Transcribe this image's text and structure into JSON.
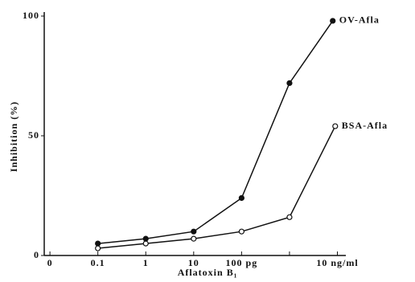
{
  "chart_data": {
    "type": "line",
    "xlabel": "Aflatoxin B₁",
    "ylabel": "Inhibition (%)",
    "xscale": "log",
    "xlim": [
      0.0076,
      15000
    ],
    "xticks": [
      {
        "value": 0.01,
        "label": "0"
      },
      0.1,
      1,
      10,
      {
        "value": 100,
        "label": "100 pg"
      },
      {
        "value": 1000,
        "label": null
      },
      {
        "value": 10000,
        "label": "10 ng/ml"
      }
    ],
    "ylim": [
      0,
      100
    ],
    "yticks": [
      0,
      50,
      100
    ],
    "series": [
      {
        "name": "OV-Afla",
        "color": "#111111",
        "marker": "filled",
        "x": [
          0.1,
          1,
          10,
          100,
          1000,
          8000
        ],
        "values": [
          5,
          7,
          10,
          24,
          72,
          98
        ]
      },
      {
        "name": "BSA-Afla",
        "color": "#111111",
        "marker": "open",
        "x": [
          0.1,
          1,
          10,
          100,
          1000,
          9000
        ],
        "values": [
          3,
          5,
          7,
          10,
          16,
          54
        ]
      }
    ]
  }
}
